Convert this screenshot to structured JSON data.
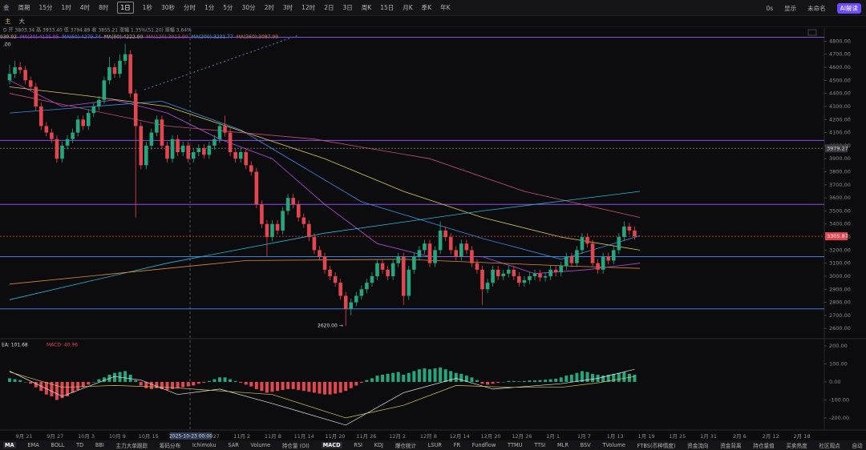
{
  "toolbar": {
    "left": [
      "金",
      "周期",
      "15分",
      "1时",
      "4时",
      "8时",
      "1日",
      "1秒",
      "30秒",
      "分时",
      "1分",
      "5分",
      "30分",
      "2时",
      "3时",
      "12时",
      "2日",
      "3日",
      "周K",
      "15日",
      "月K",
      "季K",
      "年K"
    ],
    "right": [
      "0s",
      "显示",
      "未命名",
      "AI解读"
    ]
  },
  "row2": [
    "主",
    "大"
  ],
  "info": {
    "ohlc": "D 开 3803.34 高 3933.40 低 3794.89 收 3855.21 涨幅 1.35%(51.20) 振幅 3.64%",
    "ma_first": "939.92",
    "left_value": ".00"
  },
  "macd_info": {
    "dea": "EA: 101.68",
    "macd": "MACD: 40.96"
  },
  "low_label": "2620.00 →",
  "crosshair_label": "2025-10-23 00:00",
  "x_labels": [
    "9月 21",
    "9月 27",
    "10月 3",
    "10月 9",
    "10月 15",
    "27",
    "11月 2",
    "11月 8",
    "11月 14",
    "11月 20",
    "11月 26",
    "12月 2",
    "12月 8",
    "12月 14",
    "12月 20",
    "12月 26",
    "1月 1",
    "1月 7",
    "1月 13",
    "1月 19",
    "1月 25",
    "1月 31",
    "2月 6",
    "2月 12",
    "2月 18"
  ],
  "tabs": [
    "MA",
    "EMA",
    "BOLL",
    "TD",
    "BBI",
    "主力大单跟踪",
    "筹码分布",
    "Ichimoku",
    "SAR",
    "Volume",
    "持仓量 (OI)",
    "MACD",
    "RSI",
    "KDJ",
    "爆仓统计",
    "LSUR",
    "FR",
    "Fundflow",
    "TTMU",
    "TTSI",
    "MLR",
    "BSV",
    "TVolume",
    "FTBS(币种情度)",
    "资金流向",
    "资金背离",
    "持仓量值",
    "买卖热度",
    "社区观点",
    "自动"
  ],
  "chart_data": [
    {
      "type": "candlestick",
      "up_color": "#26a67f",
      "down_color": "#e2474f",
      "ylim": [
        2540,
        4870
      ],
      "yticks": [
        {
          "value": 4800,
          "label": "4800.00"
        },
        {
          "value": 4700,
          "label": "4700.00"
        },
        {
          "value": 4600,
          "label": "4600.00"
        },
        {
          "value": 4500,
          "label": "4500.00"
        },
        {
          "value": 4400,
          "label": "4400.00"
        },
        {
          "value": 4300,
          "label": "4300.00"
        },
        {
          "value": 4200,
          "label": "4200.00"
        },
        {
          "value": 4100,
          "label": "4100.00"
        },
        {
          "value": 4000,
          "label": "4000.00"
        },
        {
          "value": 3900,
          "label": "3900.00"
        },
        {
          "value": 3800,
          "label": "3800.00"
        },
        {
          "value": 3700,
          "label": "3700.00"
        },
        {
          "value": 3600,
          "label": "3600.00"
        },
        {
          "value": 3500,
          "label": "3500.00"
        },
        {
          "value": 3400,
          "label": "3400.00"
        },
        {
          "value": 3300,
          "label": "3300.00"
        },
        {
          "value": 3200,
          "label": "3200.00"
        },
        {
          "value": 3100,
          "label": "3100.00"
        },
        {
          "value": 3000,
          "label": "3000.00"
        },
        {
          "value": 2900,
          "label": "2900.00"
        },
        {
          "value": 2800,
          "label": "2800.00"
        },
        {
          "value": 2700,
          "label": "2700.00"
        },
        {
          "value": 2600,
          "label": "2600.00"
        }
      ],
      "hlines": [
        {
          "value": 4830,
          "color": "#8a4de0",
          "dashed": false
        },
        {
          "value": 4040,
          "color": "#8a4de0",
          "dashed": false
        },
        {
          "value": 3979.27,
          "color": "#666",
          "dashed": true
        },
        {
          "value": 3550,
          "color": "#8a4de0",
          "dashed": false
        },
        {
          "value": 3150,
          "color": "#3b7fd9",
          "dashed": false
        },
        {
          "value": 2750,
          "color": "#3b7fd9",
          "dashed": false
        }
      ],
      "candles": [
        [
          4500,
          4620,
          4470,
          4550
        ],
        [
          4550,
          4650,
          4520,
          4600
        ],
        [
          4600,
          4640,
          4550,
          4580
        ],
        [
          4580,
          4610,
          4470,
          4500
        ],
        [
          4500,
          4530,
          4420,
          4450
        ],
        [
          4450,
          4480,
          4270,
          4300
        ],
        [
          4300,
          4330,
          4120,
          4150
        ],
        [
          4150,
          4180,
          4070,
          4100
        ],
        [
          4100,
          4130,
          4020,
          4050
        ],
        [
          4050,
          4080,
          3870,
          3900
        ],
        [
          3900,
          4030,
          3870,
          4000
        ],
        [
          4000,
          4080,
          3970,
          4050
        ],
        [
          4050,
          4130,
          4020,
          4100
        ],
        [
          4100,
          4230,
          4070,
          4200
        ],
        [
          4200,
          4230,
          4120,
          4150
        ],
        [
          4150,
          4280,
          4120,
          4250
        ],
        [
          4250,
          4330,
          4220,
          4300
        ],
        [
          4300,
          4380,
          4270,
          4350
        ],
        [
          4350,
          4530,
          4320,
          4500
        ],
        [
          4500,
          4680,
          4470,
          4600
        ],
        [
          4600,
          4630,
          4520,
          4550
        ],
        [
          4550,
          4700,
          4520,
          4650
        ],
        [
          4650,
          4780,
          4620,
          4700
        ],
        [
          4700,
          4730,
          4370,
          4400
        ],
        [
          4400,
          4430,
          3450,
          4150
        ],
        [
          4150,
          4180,
          3820,
          3850
        ],
        [
          3850,
          4030,
          3820,
          4000
        ],
        [
          4000,
          4130,
          3970,
          4100
        ],
        [
          4100,
          4230,
          4070,
          4200
        ],
        [
          4200,
          4230,
          3970,
          4000
        ],
        [
          4000,
          4030,
          3870,
          3900
        ],
        [
          3900,
          4080,
          3870,
          4050
        ],
        [
          4050,
          4080,
          3920,
          3950
        ],
        [
          3950,
          4030,
          3920,
          4000
        ],
        [
          4000,
          4030,
          3870,
          3900
        ],
        [
          3900,
          3980,
          3870,
          3950
        ],
        [
          3950,
          4010,
          3920,
          3980
        ],
        [
          3980,
          4010,
          3900,
          3930
        ],
        [
          3930,
          4030,
          3900,
          4000
        ],
        [
          4000,
          4080,
          3970,
          4050
        ],
        [
          4050,
          4180,
          4020,
          4150
        ],
        [
          4150,
          4230,
          4070,
          4100
        ],
        [
          4100,
          4130,
          3920,
          3950
        ],
        [
          3950,
          3980,
          3870,
          3900
        ],
        [
          3900,
          3980,
          3870,
          3950
        ],
        [
          3950,
          3980,
          3820,
          3850
        ],
        [
          3850,
          3880,
          3770,
          3800
        ],
        [
          3800,
          3830,
          3520,
          3550
        ],
        [
          3550,
          3580,
          3370,
          3400
        ],
        [
          3400,
          3430,
          3150,
          3300
        ],
        [
          3300,
          3430,
          3270,
          3400
        ],
        [
          3400,
          3430,
          3320,
          3350
        ],
        [
          3350,
          3530,
          3320,
          3500
        ],
        [
          3500,
          3630,
          3470,
          3600
        ],
        [
          3600,
          3630,
          3520,
          3550
        ],
        [
          3550,
          3580,
          3420,
          3450
        ],
        [
          3450,
          3480,
          3370,
          3400
        ],
        [
          3400,
          3430,
          3270,
          3300
        ],
        [
          3300,
          3330,
          3170,
          3200
        ],
        [
          3200,
          3230,
          3120,
          3150
        ],
        [
          3150,
          3180,
          3020,
          3050
        ],
        [
          3050,
          3080,
          2970,
          3000
        ],
        [
          3000,
          3030,
          2920,
          2950
        ],
        [
          2950,
          2980,
          2820,
          2850
        ],
        [
          2850,
          2880,
          2620,
          2750
        ],
        [
          2750,
          2830,
          2700,
          2800
        ],
        [
          2800,
          2880,
          2770,
          2850
        ],
        [
          2850,
          2930,
          2820,
          2900
        ],
        [
          2900,
          2980,
          2870,
          2950
        ],
        [
          2950,
          3030,
          2920,
          3000
        ],
        [
          3000,
          3130,
          2970,
          3100
        ],
        [
          3100,
          3130,
          3020,
          3050
        ],
        [
          3050,
          3080,
          2970,
          3000
        ],
        [
          3000,
          3130,
          2970,
          3100
        ],
        [
          3100,
          3180,
          3070,
          3150
        ],
        [
          3150,
          3180,
          2780,
          2850
        ],
        [
          2850,
          3080,
          2820,
          3050
        ],
        [
          3050,
          3180,
          3020,
          3150
        ],
        [
          3150,
          3230,
          3120,
          3200
        ],
        [
          3200,
          3280,
          3170,
          3250
        ],
        [
          3250,
          3280,
          3070,
          3100
        ],
        [
          3100,
          3230,
          3070,
          3200
        ],
        [
          3200,
          3420,
          3170,
          3350
        ],
        [
          3350,
          3380,
          3270,
          3300
        ],
        [
          3300,
          3330,
          3170,
          3200
        ],
        [
          3200,
          3230,
          3120,
          3150
        ],
        [
          3150,
          3280,
          3120,
          3250
        ],
        [
          3250,
          3280,
          3170,
          3200
        ],
        [
          3200,
          3230,
          3070,
          3100
        ],
        [
          3100,
          3130,
          3020,
          3050
        ],
        [
          3050,
          3080,
          2780,
          2900
        ],
        [
          2900,
          2980,
          2870,
          2950
        ],
        [
          2950,
          3080,
          2920,
          3050
        ],
        [
          3050,
          3080,
          2970,
          3000
        ],
        [
          3000,
          3050,
          2970,
          3020
        ],
        [
          3020,
          3080,
          2990,
          3050
        ],
        [
          3050,
          3080,
          2970,
          3000
        ],
        [
          3000,
          3030,
          2920,
          2950
        ],
        [
          2950,
          3000,
          2920,
          2970
        ],
        [
          2970,
          3030,
          2940,
          3000
        ],
        [
          3000,
          3050,
          2970,
          3020
        ],
        [
          3020,
          3050,
          2960,
          2990
        ],
        [
          2990,
          3030,
          2960,
          3000
        ],
        [
          3000,
          3080,
          2970,
          3050
        ],
        [
          3050,
          3080,
          3000,
          3030
        ],
        [
          3030,
          3110,
          3000,
          3080
        ],
        [
          3080,
          3180,
          3050,
          3150
        ],
        [
          3150,
          3180,
          3070,
          3100
        ],
        [
          3100,
          3230,
          3070,
          3200
        ],
        [
          3200,
          3330,
          3170,
          3300
        ],
        [
          3300,
          3330,
          3220,
          3250
        ],
        [
          3250,
          3280,
          3070,
          3100
        ],
        [
          3100,
          3130,
          3020,
          3050
        ],
        [
          3050,
          3180,
          3020,
          3150
        ],
        [
          3150,
          3180,
          3090,
          3120
        ],
        [
          3120,
          3230,
          3090,
          3200
        ],
        [
          3200,
          3330,
          3170,
          3300
        ],
        [
          3300,
          3420,
          3270,
          3380
        ],
        [
          3380,
          3410,
          3320,
          3350
        ],
        [
          3350,
          3380,
          3280,
          3305.87
        ]
      ],
      "series": [
        {
          "name": "MA(30):4135.95",
          "color": "#b44cd9",
          "x": [
            0,
            10,
            20,
            30,
            40,
            50,
            60,
            70,
            80,
            90,
            100,
            110,
            120
          ],
          "values": [
            4500,
            4300,
            4350,
            4250,
            4050,
            3900,
            3550,
            3250,
            3150,
            3150,
            3020,
            3050,
            3100
          ]
        },
        {
          "name": "MA(60):4279.74",
          "color": "#3c8ee0",
          "x": [
            0,
            29,
            44,
            67,
            90,
            105,
            120
          ],
          "values": [
            4250,
            4340,
            4120,
            3570,
            3290,
            3130,
            3310
          ]
        },
        {
          "name": "MA(90):4222.90",
          "color": "#d9c85a",
          "x": [
            0,
            15,
            30,
            45,
            60,
            75,
            90,
            105,
            120
          ],
          "values": [
            4450,
            4380,
            4300,
            4100,
            3900,
            3650,
            3450,
            3300,
            3200
          ]
        },
        {
          "name": "MA(120):3913.90",
          "color": "#c0507a",
          "x": [
            0,
            30,
            58,
            80,
            98,
            120
          ],
          "values": [
            4400,
            4150,
            4050,
            3900,
            3650,
            3450
          ]
        },
        {
          "name": "MA(200):3231.77",
          "color": "#2bb8d6",
          "x": [
            0,
            30,
            60,
            90,
            120
          ],
          "values": [
            2820,
            3100,
            3330,
            3500,
            3650
          ]
        },
        {
          "name": "MA(360):3087.99",
          "color": "#e08a3c",
          "x": [
            0,
            45,
            75,
            105,
            120
          ],
          "values": [
            2940,
            3120,
            3130,
            3080,
            3060
          ]
        }
      ]
    },
    {
      "type": "macd",
      "up_color": "#26a67f",
      "down_color": "#e2474f",
      "ylim": [
        -267,
        231
      ],
      "yticks": [
        {
          "value": 200,
          "label": "200.00"
        },
        {
          "value": 100,
          "label": "100.00"
        },
        {
          "value": 0,
          "label": "0.00"
        },
        {
          "value": -100,
          "label": "-100.00"
        },
        {
          "value": -200,
          "label": "-200.00"
        }
      ],
      "values": [
        20,
        15,
        10,
        0,
        -10,
        -30,
        -50,
        -70,
        -80,
        -100,
        -90,
        -80,
        -60,
        -45,
        -30,
        -15,
        0,
        15,
        25,
        40,
        50,
        55,
        60,
        40,
        10,
        -20,
        -35,
        -40,
        -35,
        -40,
        -45,
        -40,
        -35,
        -30,
        -25,
        -20,
        -10,
        -5,
        5,
        15,
        25,
        25,
        15,
        5,
        -5,
        -15,
        -25,
        -40,
        -50,
        -60,
        -55,
        -50,
        -45,
        -40,
        -40,
        -45,
        -50,
        -55,
        -60,
        -65,
        -70,
        -70,
        -65,
        -60,
        -50,
        -35,
        -20,
        -5,
        10,
        20,
        35,
        40,
        45,
        50,
        55,
        40,
        50,
        60,
        70,
        75,
        70,
        75,
        80,
        70,
        60,
        50,
        45,
        35,
        25,
        10,
        -10,
        -15,
        -10,
        -5,
        0,
        5,
        5,
        3,
        5,
        8,
        8,
        10,
        12,
        15,
        18,
        25,
        35,
        40,
        50,
        60,
        55,
        45,
        40,
        35,
        40,
        45,
        50,
        55,
        45,
        40
      ],
      "series": [
        {
          "color": "#e8e8e8",
          "x": [
            0,
            10,
            20,
            25,
            32,
            40,
            50,
            64,
            75,
            85,
            92,
            105,
            112,
            119
          ],
          "values": [
            60,
            -80,
            30,
            10,
            -70,
            -40,
            -120,
            -240,
            -60,
            20,
            -40,
            -10,
            20,
            70
          ]
        },
        {
          "color": "#d9c85a",
          "x": [
            0,
            10,
            20,
            30,
            40,
            50,
            64,
            75,
            85,
            95,
            105,
            112,
            119
          ],
          "values": [
            55,
            -30,
            -20,
            -30,
            -50,
            -70,
            -200,
            -130,
            -20,
            -30,
            -30,
            -5,
            30
          ]
        }
      ]
    }
  ]
}
